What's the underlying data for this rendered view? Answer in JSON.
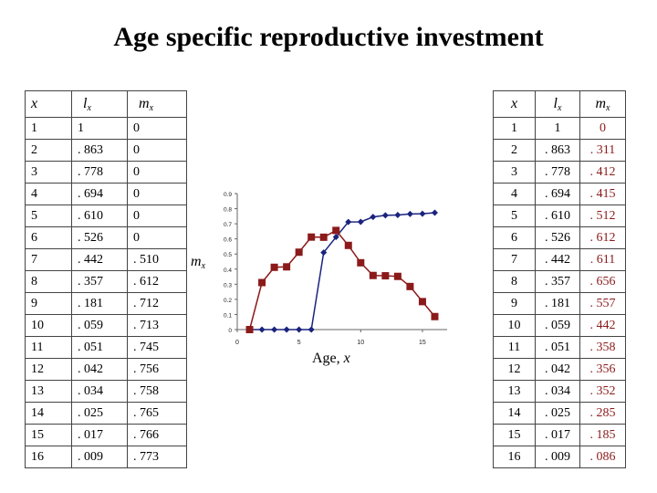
{
  "title": "Age specific reproductive investment",
  "left_table": {
    "headers": [
      {
        "main": "x",
        "sub": ""
      },
      {
        "main": "l",
        "sub": "x"
      },
      {
        "main": "m",
        "sub": "x"
      }
    ],
    "rows": [
      [
        "1",
        "1",
        "0"
      ],
      [
        "2",
        ". 863",
        "0"
      ],
      [
        "3",
        ". 778",
        "0"
      ],
      [
        "4",
        ". 694",
        "0"
      ],
      [
        "5",
        ". 610",
        "0"
      ],
      [
        "6",
        ". 526",
        "0"
      ],
      [
        "7",
        ". 442",
        ". 510"
      ],
      [
        "8",
        ". 357",
        ". 612"
      ],
      [
        "9",
        ". 181",
        ". 712"
      ],
      [
        "10",
        ". 059",
        ". 713"
      ],
      [
        "11",
        ". 051",
        ". 745"
      ],
      [
        "12",
        ". 042",
        ". 756"
      ],
      [
        "13",
        ". 034",
        ". 758"
      ],
      [
        "14",
        ". 025",
        ". 765"
      ],
      [
        "15",
        ". 017",
        ". 766"
      ],
      [
        "16",
        ". 009",
        ". 773"
      ]
    ]
  },
  "right_table": {
    "headers": [
      {
        "main": "x",
        "sub": ""
      },
      {
        "main": "l",
        "sub": "x"
      },
      {
        "main": "m",
        "sub": "x"
      }
    ],
    "rows": [
      [
        "1",
        "1",
        "0"
      ],
      [
        "2",
        ". 863",
        ". 311"
      ],
      [
        "3",
        ". 778",
        ". 412"
      ],
      [
        "4",
        ". 694",
        ". 415"
      ],
      [
        "5",
        ". 610",
        ". 512"
      ],
      [
        "6",
        ". 526",
        ". 612"
      ],
      [
        "7",
        ". 442",
        ". 611"
      ],
      [
        "8",
        ". 357",
        ". 656"
      ],
      [
        "9",
        ". 181",
        ". 557"
      ],
      [
        "10",
        ". 059",
        ". 442"
      ],
      [
        "11",
        ". 051",
        ". 358"
      ],
      [
        "12",
        ". 042",
        ". 356"
      ],
      [
        "13",
        ". 034",
        ". 352"
      ],
      [
        "14",
        ". 025",
        ". 285"
      ],
      [
        "15",
        ". 017",
        ". 185"
      ],
      [
        "16",
        ". 009",
        ". 086"
      ]
    ]
  },
  "chart_data": {
    "type": "line",
    "title": "",
    "xlabel": "Age, x",
    "xlabel_main": "Age, ",
    "xlabel_var": "x",
    "ylabel": "m",
    "ylabel_sub": "x",
    "xlim": [
      0,
      17
    ],
    "ylim": [
      0,
      0.9
    ],
    "xticks": [
      0,
      5,
      10,
      15
    ],
    "yticks": [
      0,
      0.1,
      0.2,
      0.3,
      0.4,
      0.5,
      0.6,
      0.7,
      0.8,
      0.9
    ],
    "ytick_labels": [
      "0",
      "0.1",
      "0.2",
      "0.3",
      "0.4",
      "0.5",
      "0.6",
      "0.7",
      "0.8",
      "0.9"
    ],
    "grid": false,
    "x": [
      1,
      2,
      3,
      4,
      5,
      6,
      7,
      8,
      9,
      10,
      11,
      12,
      13,
      14,
      15,
      16
    ],
    "series": [
      {
        "color": "#1a237e",
        "marker": "diamond",
        "values": [
          0,
          0,
          0,
          0,
          0,
          0,
          0.51,
          0.612,
          0.712,
          0.713,
          0.745,
          0.756,
          0.758,
          0.765,
          0.766,
          0.773
        ]
      },
      {
        "color": "#8b1a1a",
        "marker": "square",
        "values": [
          0,
          0.311,
          0.412,
          0.415,
          0.512,
          0.612,
          0.611,
          0.656,
          0.557,
          0.442,
          0.358,
          0.356,
          0.352,
          0.285,
          0.185,
          0.086
        ]
      }
    ]
  }
}
